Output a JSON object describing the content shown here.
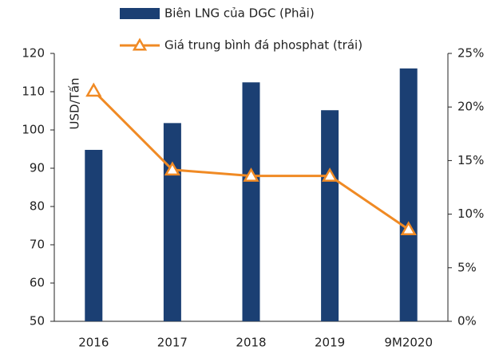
{
  "chart_data": {
    "type": "bar-line",
    "y_axis_label": "USD/Tấn",
    "categories": [
      "2016",
      "2017",
      "2018",
      "2019",
      "9M2020"
    ],
    "series": [
      {
        "name": "Biên LNG của DGC (Phải)",
        "type": "bar",
        "axis": "y2",
        "color": "#1b3f73",
        "values": [
          16.0,
          18.5,
          22.3,
          19.7,
          23.6
        ]
      },
      {
        "name": "Giá trung bình đá phosphat (trái)",
        "type": "line",
        "axis": "y",
        "color": "#f08a24",
        "values": [
          110.2,
          89.6,
          88,
          88,
          74
        ]
      }
    ],
    "ylim": [
      50,
      120
    ],
    "yticks": [
      50,
      60,
      70,
      80,
      90,
      100,
      110,
      120
    ],
    "y2lim": [
      0,
      25
    ],
    "y2ticks": [
      {
        "value": 0,
        "label": "0%"
      },
      {
        "value": 5,
        "label": "5%"
      },
      {
        "value": 10,
        "label": "10%"
      },
      {
        "value": 15,
        "label": "15%"
      },
      {
        "value": 20,
        "label": "20%"
      },
      {
        "value": 25,
        "label": "25%"
      }
    ]
  }
}
